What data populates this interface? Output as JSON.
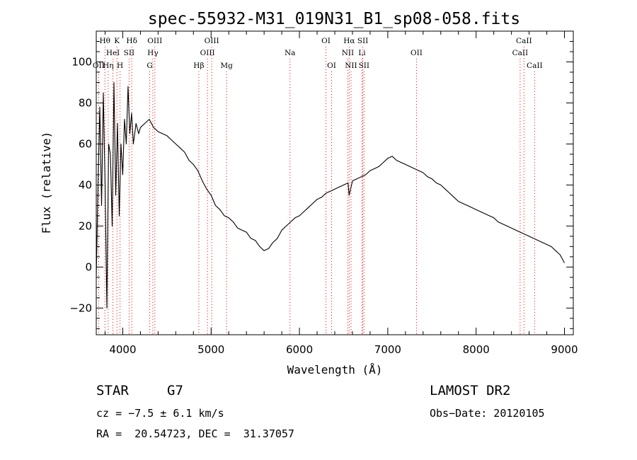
{
  "chart_data": {
    "type": "line",
    "title": "spec-55932-M31_019N31_B1_sp08-058.fits",
    "xlabel": "Wavelength (Å)",
    "ylabel": "Flux (relative)",
    "xlim": [
      3700,
      9100
    ],
    "ylim": [
      -33,
      115
    ],
    "x_ticks": [
      4000,
      5000,
      6000,
      7000,
      8000,
      9000
    ],
    "y_ticks": [
      -20,
      0,
      20,
      40,
      60,
      80,
      100
    ],
    "grid": false,
    "series": [
      {
        "color": "#000000",
        "x": [
          3700,
          3720,
          3740,
          3760,
          3780,
          3800,
          3820,
          3840,
          3860,
          3880,
          3900,
          3920,
          3940,
          3960,
          3980,
          4000,
          4020,
          4040,
          4060,
          4080,
          4100,
          4120,
          4150,
          4180,
          4200,
          4250,
          4300,
          4350,
          4400,
          4450,
          4500,
          4550,
          4600,
          4650,
          4700,
          4750,
          4800,
          4850,
          4900,
          4950,
          5000,
          5050,
          5100,
          5150,
          5200,
          5250,
          5300,
          5350,
          5400,
          5450,
          5500,
          5550,
          5600,
          5650,
          5700,
          5750,
          5800,
          5850,
          5900,
          5950,
          6000,
          6050,
          6100,
          6150,
          6200,
          6250,
          6300,
          6350,
          6400,
          6450,
          6500,
          6550,
          6563,
          6600,
          6650,
          6700,
          6750,
          6800,
          6850,
          6900,
          6950,
          7000,
          7050,
          7100,
          7150,
          7200,
          7250,
          7300,
          7350,
          7400,
          7450,
          7500,
          7550,
          7600,
          7650,
          7700,
          7750,
          7800,
          7850,
          7900,
          7950,
          8000,
          8050,
          8100,
          8150,
          8200,
          8250,
          8300,
          8350,
          8400,
          8450,
          8500,
          8550,
          8600,
          8650,
          8700,
          8750,
          8800,
          8850,
          8900,
          8950,
          9000
        ],
        "y": [
          -5,
          40,
          78,
          30,
          85,
          40,
          -20,
          60,
          55,
          20,
          90,
          35,
          70,
          25,
          60,
          45,
          72,
          60,
          88,
          65,
          75,
          60,
          70,
          65,
          68,
          70,
          72,
          68,
          66,
          65,
          64,
          62,
          60,
          58,
          56,
          52,
          50,
          47,
          42,
          38,
          35,
          30,
          28,
          25,
          24,
          22,
          19,
          18,
          17,
          14,
          13,
          10,
          8,
          9,
          12,
          14,
          18,
          20,
          22,
          24,
          25,
          27,
          29,
          31,
          33,
          34,
          36,
          37,
          38,
          39,
          40,
          41,
          35,
          42,
          43,
          44,
          45,
          47,
          48,
          49,
          51,
          53,
          54,
          52,
          51,
          50,
          49,
          48,
          47,
          46,
          44,
          43,
          41,
          40,
          38,
          36,
          34,
          32,
          31,
          30,
          29,
          28,
          27,
          26,
          25,
          24,
          22,
          21,
          20,
          19,
          18,
          17,
          16,
          15,
          14,
          13,
          12,
          11,
          10,
          8,
          6,
          2
        ]
      }
    ],
    "annotations": [
      {
        "text": "Hθ",
        "x": 3798,
        "row": 1
      },
      {
        "text": "K",
        "x": 3934,
        "row": 1
      },
      {
        "text": "Hδ",
        "x": 4102,
        "row": 1
      },
      {
        "text": "OIII",
        "x": 4363,
        "row": 1
      },
      {
        "text": "OIII",
        "x": 5007,
        "row": 1
      },
      {
        "text": "OI",
        "x": 6300,
        "row": 1
      },
      {
        "text": "Hα",
        "x": 6563,
        "row": 1
      },
      {
        "text": "SII",
        "x": 6717,
        "row": 1
      },
      {
        "text": "CaII",
        "x": 8542,
        "row": 1
      },
      {
        "text": "HeI",
        "x": 3889,
        "row": 2
      },
      {
        "text": "SII",
        "x": 4072,
        "row": 2
      },
      {
        "text": "Hγ",
        "x": 4340,
        "row": 2
      },
      {
        "text": "OIII",
        "x": 4959,
        "row": 2
      },
      {
        "text": "Na",
        "x": 5893,
        "row": 2
      },
      {
        "text": "NII",
        "x": 6548,
        "row": 2
      },
      {
        "text": "Li",
        "x": 6708,
        "row": 2
      },
      {
        "text": "OII",
        "x": 7325,
        "row": 2
      },
      {
        "text": "CaII",
        "x": 8498,
        "row": 2
      },
      {
        "text": "OII",
        "x": 3727,
        "row": 3
      },
      {
        "text": "Hη",
        "x": 3835,
        "row": 3
      },
      {
        "text": "H",
        "x": 3969,
        "row": 3
      },
      {
        "text": "G",
        "x": 4305,
        "row": 3
      },
      {
        "text": "Hβ",
        "x": 4861,
        "row": 3
      },
      {
        "text": "Mg",
        "x": 5175,
        "row": 3
      },
      {
        "text": "OI",
        "x": 6364,
        "row": 3
      },
      {
        "text": "NII",
        "x": 6584,
        "row": 3
      },
      {
        "text": "SII",
        "x": 6731,
        "row": 3
      },
      {
        "text": "CaII",
        "x": 8662,
        "row": 3
      }
    ],
    "line_marker_color": "#ff0000"
  },
  "info": {
    "object_type": "STAR",
    "subclass": "G7",
    "survey": "LAMOST DR2",
    "cz": "cz = −7.5 ± 6.1 km/s",
    "obs_date": "Obs−Date: 20120105",
    "coords": "RA =  20.54723, DEC =  31.37057"
  }
}
